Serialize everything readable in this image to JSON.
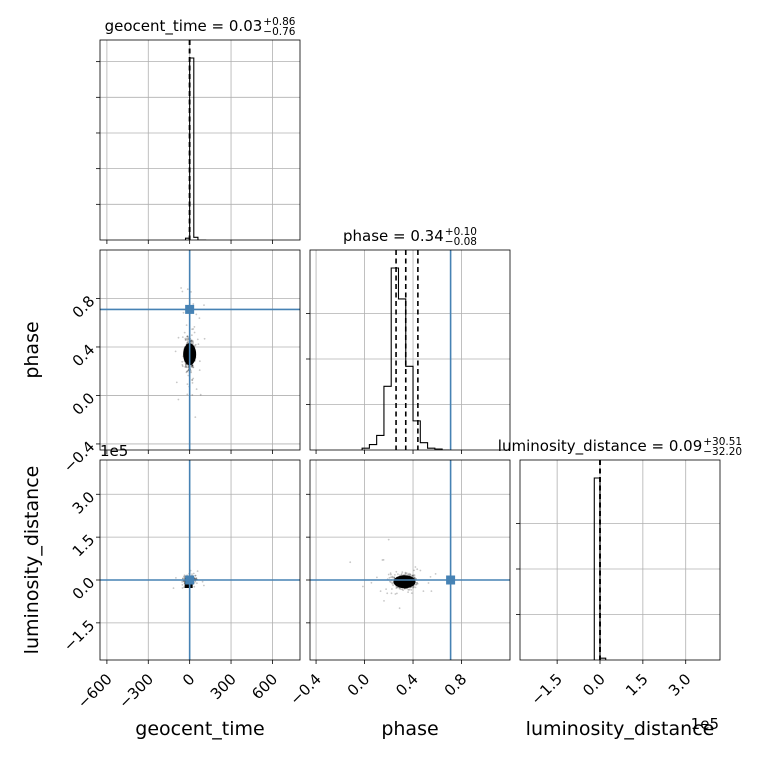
{
  "chart_data": {
    "type": "corner",
    "parameters": [
      "geocent_time",
      "phase",
      "luminosity_distance"
    ],
    "truth_color": "#4682b4",
    "truths": {
      "geocent_time": 0.0,
      "phase": 0.71,
      "luminosity_distance": 0.0
    },
    "grid": true,
    "axes": {
      "geocent_time": {
        "range": [
          -650,
          800
        ],
        "ticks": [
          -600,
          -300,
          0,
          300,
          600
        ],
        "tick_labels": [
          "−600",
          "−300",
          "0",
          "300",
          "600"
        ]
      },
      "phase": {
        "range": [
          -0.45,
          1.2
        ],
        "ticks": [
          -0.4,
          0.0,
          0.4,
          0.8
        ],
        "tick_labels": [
          "−0.4",
          "0.0",
          "0.4",
          "0.8"
        ]
      },
      "luminosity_distance": {
        "range": [
          -2.8,
          4.2
        ],
        "ticks": [
          -1.5,
          0.0,
          1.5,
          3.0
        ],
        "tick_labels": [
          "−1.5",
          "0.0",
          "1.5",
          "3.0"
        ],
        "offset_label": "1e5"
      }
    },
    "titles": [
      {
        "param": "geocent_time",
        "median": "0.03",
        "plus": "+0.86",
        "minus": "−0.76"
      },
      {
        "param": "phase",
        "median": "0.34",
        "plus": "+0.10",
        "minus": "−0.08"
      },
      {
        "param": "luminosity_distance",
        "median": "0.09",
        "plus": "+30.51",
        "minus": "−32.20"
      }
    ],
    "histograms": [
      {
        "param": "geocent_time",
        "bin_edges": [
          -30,
          0,
          30,
          60,
          90,
          120
        ],
        "counts": [
          1,
          100,
          1.5,
          0,
          0
        ],
        "quantiles": [
          -0.73,
          0.03,
          0.89
        ]
      },
      {
        "param": "phase",
        "bin_edges": [
          -0.02,
          0.04,
          0.1,
          0.16,
          0.22,
          0.28,
          0.34,
          0.4,
          0.46,
          0.52,
          0.58,
          0.64,
          0.7
        ],
        "counts": [
          1,
          3,
          8,
          35,
          100,
          83,
          46,
          16,
          4,
          1,
          0.5,
          0
        ],
        "quantiles": [
          0.26,
          0.34,
          0.44
        ]
      },
      {
        "param": "luminosity_distance",
        "bin_edges": [
          -0.2,
          0.0,
          0.2
        ],
        "counts": [
          100,
          1
        ],
        "quantiles": [
          -0.0003,
          0.0,
          0.0003
        ]
      }
    ],
    "scatter_summary": [
      {
        "x": "geocent_time",
        "y": "phase",
        "center": [
          0,
          0.34
        ]
      },
      {
        "x": "geocent_time",
        "y": "luminosity_distance",
        "center": [
          0,
          0.0
        ]
      },
      {
        "x": "phase",
        "y": "luminosity_distance",
        "center": [
          0.33,
          -0.06
        ]
      }
    ]
  }
}
